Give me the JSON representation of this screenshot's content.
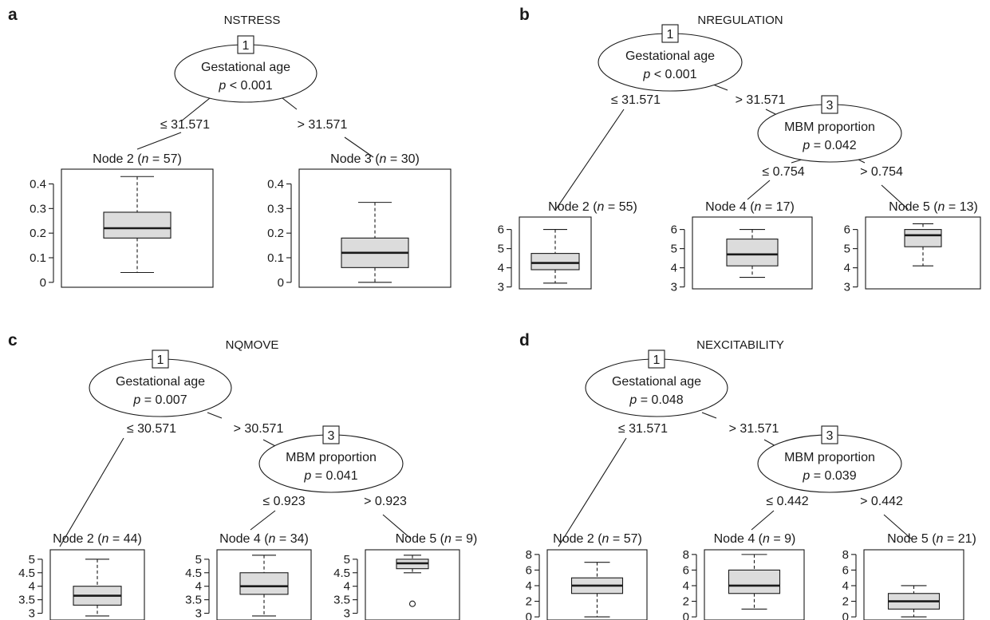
{
  "chart_data": [
    {
      "panel": "a",
      "type": "decision-tree-boxplot",
      "title": "NSTRESS",
      "nodes": [
        {
          "id": "1",
          "variable": "Gestational age",
          "p": "p < 0.001"
        }
      ],
      "edges": [
        {
          "from": "1",
          "to": "2",
          "label": "≤ 31.571"
        },
        {
          "from": "1",
          "to": "3",
          "label": "> 31.571"
        }
      ],
      "leaves": [
        {
          "label": "Node 2",
          "n": "n = 57",
          "ylim": [
            -0.02,
            0.46
          ],
          "ticks": [
            "0",
            "0.1",
            "0.2",
            "0.3",
            "0.4"
          ],
          "tick_values": [
            0,
            0.1,
            0.2,
            0.3,
            0.4
          ],
          "whisker_low": 0.04,
          "q1": 0.18,
          "median": 0.22,
          "q3": 0.285,
          "whisker_high": 0.43,
          "outliers": []
        },
        {
          "label": "Node 3",
          "n": "n = 30",
          "ylim": [
            -0.02,
            0.46
          ],
          "ticks": [
            "0",
            "0.1",
            "0.2",
            "0.3",
            "0.4"
          ],
          "tick_values": [
            0,
            0.1,
            0.2,
            0.3,
            0.4
          ],
          "whisker_low": 0.0,
          "q1": 0.06,
          "median": 0.12,
          "q3": 0.18,
          "whisker_high": 0.325,
          "outliers": []
        }
      ]
    },
    {
      "panel": "b",
      "type": "decision-tree-boxplot",
      "title": "NREGULATION",
      "nodes": [
        {
          "id": "1",
          "variable": "Gestational age",
          "p": "p < 0.001"
        },
        {
          "id": "3",
          "variable": "MBM proportion",
          "p": "p = 0.042"
        }
      ],
      "edges": [
        {
          "from": "1",
          "to": "2",
          "label": "≤ 31.571"
        },
        {
          "from": "1",
          "to": "3",
          "label": "> 31.571"
        },
        {
          "from": "3",
          "to": "4",
          "label": "≤ 0.754"
        },
        {
          "from": "3",
          "to": "5",
          "label": "> 0.754"
        }
      ],
      "leaves": [
        {
          "label": "Node 2",
          "n": "n = 55",
          "ylim": [
            2.9,
            6.65
          ],
          "ticks": [
            "3",
            "4",
            "5",
            "6"
          ],
          "tick_values": [
            3,
            4,
            5,
            6
          ],
          "whisker_low": 3.2,
          "q1": 3.9,
          "median": 4.25,
          "q3": 4.75,
          "whisker_high": 6.0,
          "outliers": []
        },
        {
          "label": "Node 4",
          "n": "n = 17",
          "ylim": [
            2.9,
            6.65
          ],
          "ticks": [
            "3",
            "4",
            "5",
            "6"
          ],
          "tick_values": [
            3,
            4,
            5,
            6
          ],
          "whisker_low": 3.5,
          "q1": 4.1,
          "median": 4.7,
          "q3": 5.5,
          "whisker_high": 6.0,
          "outliers": []
        },
        {
          "label": "Node 5",
          "n": "n = 13",
          "ylim": [
            2.9,
            6.65
          ],
          "ticks": [
            "3",
            "4",
            "5",
            "6"
          ],
          "tick_values": [
            3,
            4,
            5,
            6
          ],
          "whisker_low": 4.1,
          "q1": 5.1,
          "median": 5.7,
          "q3": 6.0,
          "whisker_high": 6.3,
          "outliers": []
        }
      ]
    },
    {
      "panel": "c",
      "type": "decision-tree-boxplot",
      "title": "NQMOVE",
      "nodes": [
        {
          "id": "1",
          "variable": "Gestational age",
          "p": "p = 0.007"
        },
        {
          "id": "3",
          "variable": "MBM proportion",
          "p": "p = 0.041"
        }
      ],
      "edges": [
        {
          "from": "1",
          "to": "2",
          "label": "≤ 30.571"
        },
        {
          "from": "1",
          "to": "3",
          "label": "> 30.571"
        },
        {
          "from": "3",
          "to": "4",
          "label": "≤ 0.923"
        },
        {
          "from": "3",
          "to": "5",
          "label": "> 0.923"
        }
      ],
      "leaves": [
        {
          "label": "Node 2",
          "n": "n = 44",
          "ylim": [
            2.75,
            5.35
          ],
          "ticks": [
            "3",
            "3.5",
            "4",
            "4.5",
            "5"
          ],
          "tick_values": [
            3,
            3.5,
            4,
            4.5,
            5
          ],
          "whisker_low": 2.9,
          "q1": 3.3,
          "median": 3.65,
          "q3": 4.0,
          "whisker_high": 5.0,
          "outliers": []
        },
        {
          "label": "Node 4",
          "n": "n = 34",
          "ylim": [
            2.75,
            5.35
          ],
          "ticks": [
            "3",
            "3.5",
            "4",
            "4.5",
            "5"
          ],
          "tick_values": [
            3,
            3.5,
            4,
            4.5,
            5
          ],
          "whisker_low": 2.9,
          "q1": 3.7,
          "median": 4.0,
          "q3": 4.5,
          "whisker_high": 5.15,
          "outliers": []
        },
        {
          "label": "Node 5",
          "n": "n = 9",
          "ylim": [
            2.75,
            5.35
          ],
          "ticks": [
            "3",
            "3.5",
            "4",
            "4.5",
            "5"
          ],
          "tick_values": [
            3,
            3.5,
            4,
            4.5,
            5
          ],
          "whisker_low": 4.5,
          "q1": 4.65,
          "median": 4.85,
          "q3": 5.0,
          "whisker_high": 5.15,
          "outliers": [
            3.35
          ]
        }
      ]
    },
    {
      "panel": "d",
      "type": "decision-tree-boxplot",
      "title": "NEXCITABILITY",
      "nodes": [
        {
          "id": "1",
          "variable": "Gestational age",
          "p": "p = 0.048"
        },
        {
          "id": "3",
          "variable": "MBM proportion",
          "p": "p = 0.039"
        }
      ],
      "edges": [
        {
          "from": "1",
          "to": "2",
          "label": "≤ 31.571"
        },
        {
          "from": "1",
          "to": "3",
          "label": "> 31.571"
        },
        {
          "from": "3",
          "to": "4",
          "label": "≤ 0.442"
        },
        {
          "from": "3",
          "to": "5",
          "label": "> 0.442"
        }
      ],
      "leaves": [
        {
          "label": "Node 2",
          "n": "n = 57",
          "ylim": [
            -0.4,
            8.6
          ],
          "ticks": [
            "0",
            "2",
            "4",
            "6",
            "8"
          ],
          "tick_values": [
            0,
            2,
            4,
            6,
            8
          ],
          "whisker_low": 0.0,
          "q1": 3.0,
          "median": 4.0,
          "q3": 5.0,
          "whisker_high": 7.0,
          "outliers": []
        },
        {
          "label": "Node 4",
          "n": "n = 9",
          "ylim": [
            -0.4,
            8.6
          ],
          "ticks": [
            "0",
            "2",
            "4",
            "6",
            "8"
          ],
          "tick_values": [
            0,
            2,
            4,
            6,
            8
          ],
          "whisker_low": 1.0,
          "q1": 3.0,
          "median": 4.0,
          "q3": 6.0,
          "whisker_high": 8.0,
          "outliers": []
        },
        {
          "label": "Node 5",
          "n": "n = 21",
          "ylim": [
            -0.4,
            8.6
          ],
          "ticks": [
            "0",
            "2",
            "4",
            "6",
            "8"
          ],
          "tick_values": [
            0,
            2,
            4,
            6,
            8
          ],
          "whisker_low": 0.0,
          "q1": 1.0,
          "median": 2.0,
          "q3": 3.0,
          "whisker_high": 4.0,
          "outliers": []
        }
      ]
    }
  ]
}
